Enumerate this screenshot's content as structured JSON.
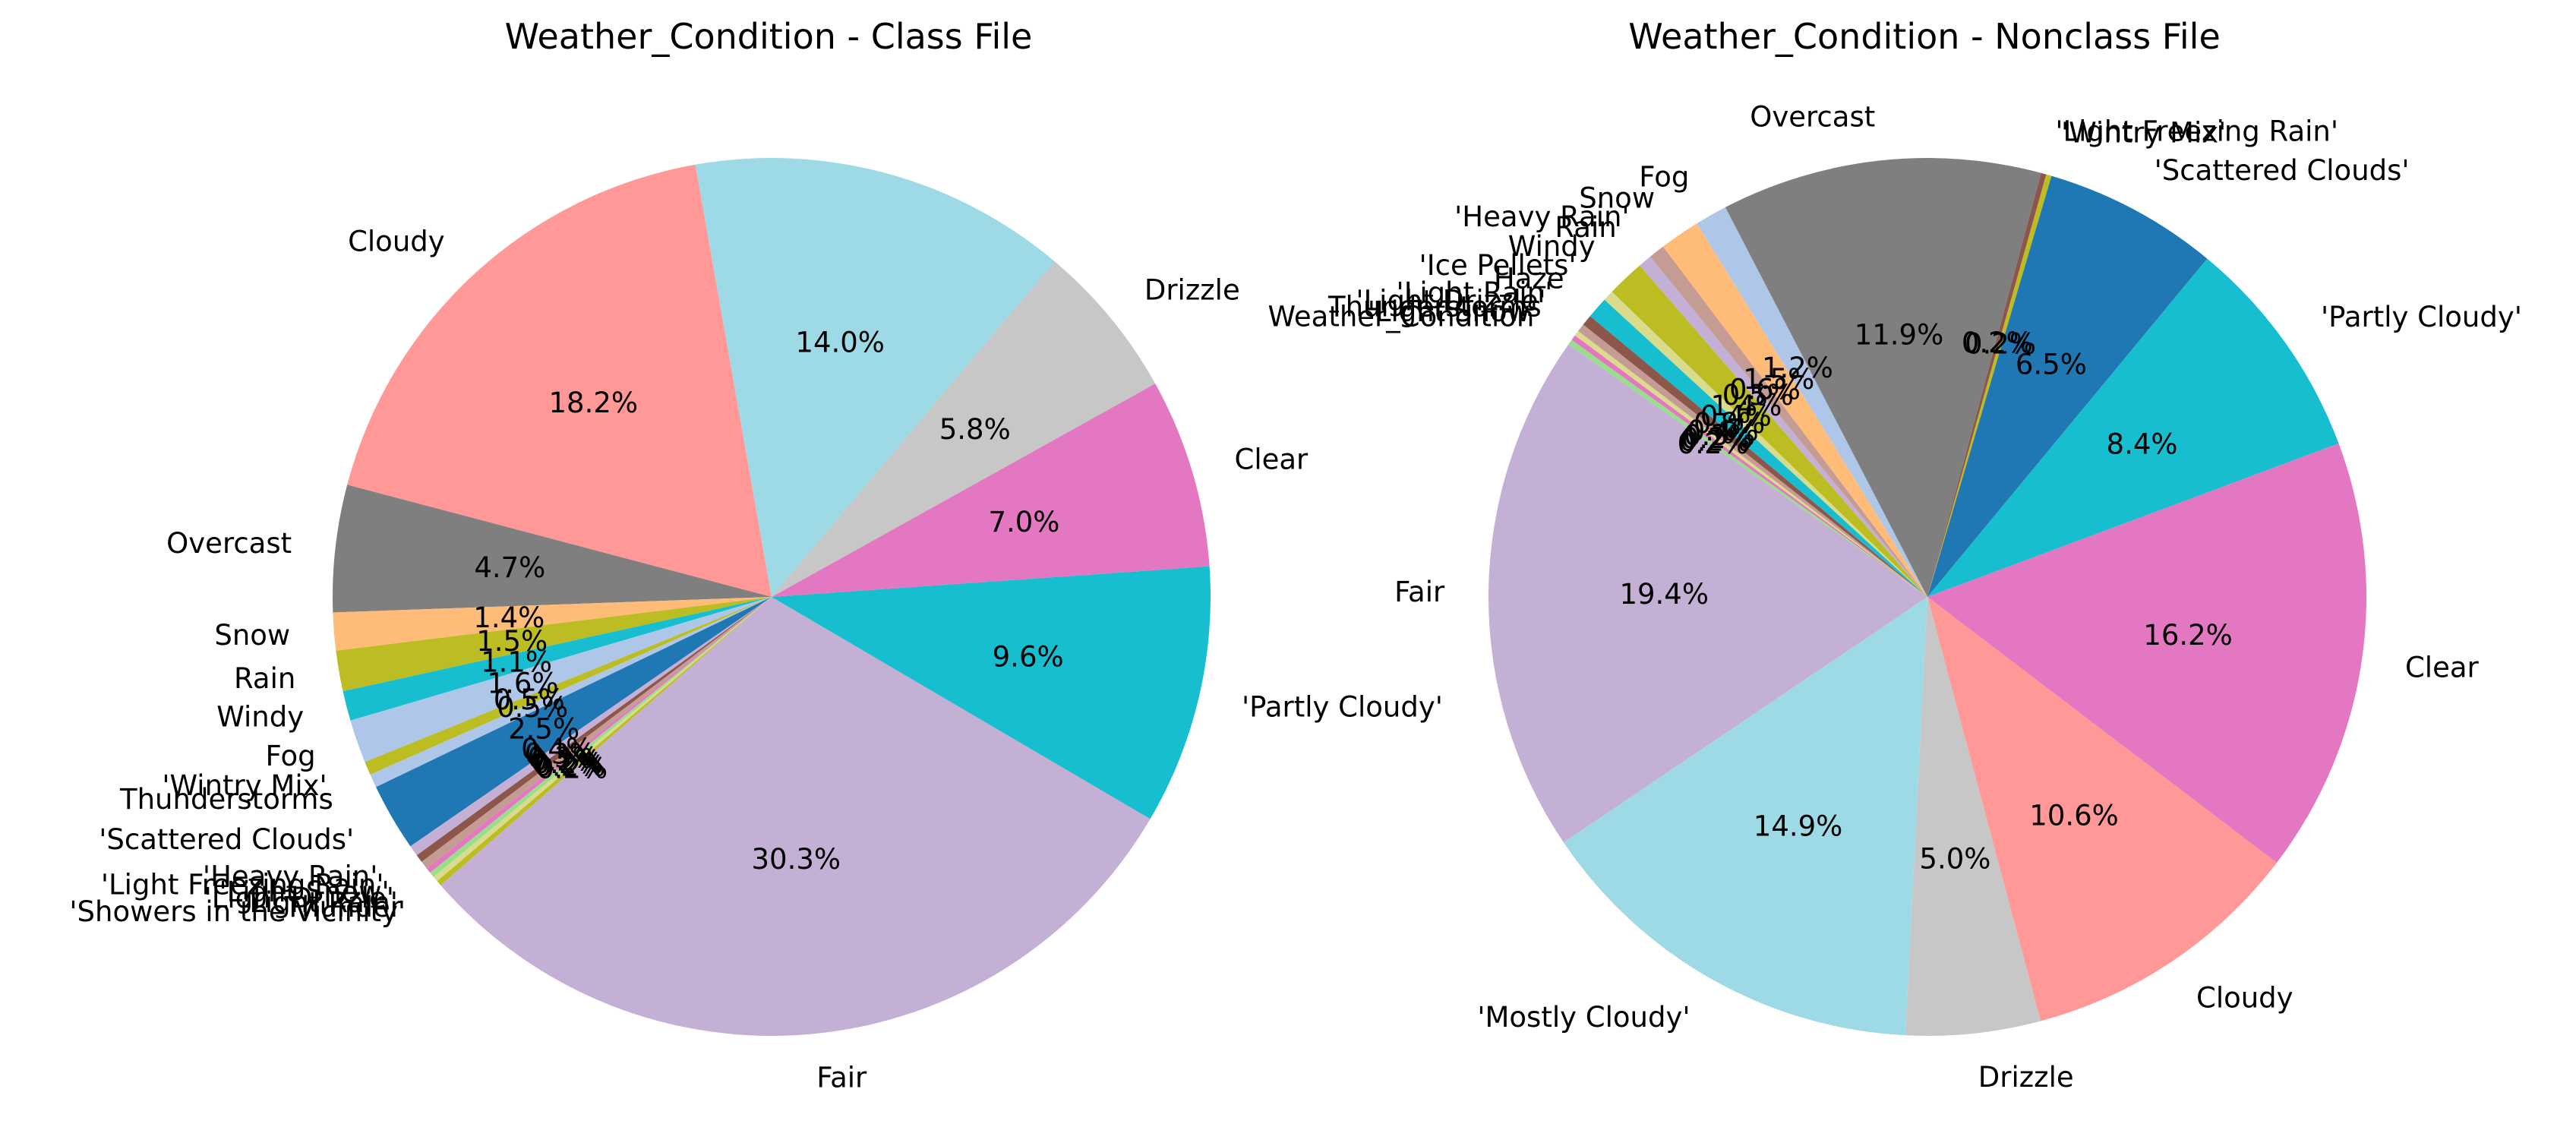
{
  "chart_data": [
    {
      "type": "pie",
      "title": "Weather_Condition - Class File",
      "start_angle_deg": 100.0,
      "direction": "counterclockwise",
      "slices": [
        {
          "label": "Cloudy",
          "value": 18.2,
          "pct_text": "18.2%",
          "color": "#ff9896"
        },
        {
          "label": "Overcast",
          "value": 4.7,
          "pct_text": "4.7%",
          "color": "#7f7f7f"
        },
        {
          "label": "Snow",
          "value": 1.4,
          "pct_text": "1.4%",
          "color": "#ffbb78"
        },
        {
          "label": "Rain",
          "value": 1.5,
          "pct_text": "1.5%",
          "color": "#bcbd22"
        },
        {
          "label": "Windy",
          "value": 1.1,
          "pct_text": "1.1%",
          "color": "#17becf"
        },
        {
          "label": "Fog",
          "value": 1.6,
          "pct_text": "1.6%",
          "color": "#aec7e8"
        },
        {
          "label": "'Wintry Mix'",
          "value": 0.5,
          "pct_text": "0.5%",
          "color": "#bcbd22"
        },
        {
          "label": "Thunderstorms",
          "value": 0.5,
          "pct_text": "0.5%",
          "color": "#aec7e8"
        },
        {
          "label": "'Scattered Clouds'",
          "value": 2.5,
          "pct_text": "2.5%",
          "color": "#1f77b4"
        },
        {
          "label": "'Heavy Rain'",
          "value": 0.4,
          "pct_text": "0.4%",
          "color": "#c5b0d5"
        },
        {
          "label": "'Light Freezing Rain'",
          "value": 0.3,
          "pct_text": "0.3%",
          "color": "#8c564b"
        },
        {
          "label": "'Light Snow'",
          "value": 0.3,
          "pct_text": "0.3%",
          "color": "#c49c94"
        },
        {
          "label": "'Light Drizzle'",
          "value": 0.2,
          "pct_text": "0.2%",
          "color": "#e377c2"
        },
        {
          "label": "'Light Rain'",
          "value": 0.2,
          "pct_text": "0.2%",
          "color": "#98df8a"
        },
        {
          "label": "Thunder",
          "value": 0.2,
          "pct_text": "0.2%",
          "color": "#dbdb8d"
        },
        {
          "label": "'Showers in the Vicinity'",
          "value": 0.2,
          "pct_text": "0.2%",
          "color": "#bcbd22"
        },
        {
          "label": "Fair",
          "value": 30.3,
          "pct_text": "30.3%",
          "color": "#c5b0d5"
        },
        {
          "label": "'Partly Cloudy'",
          "value": 9.6,
          "pct_text": "9.6%",
          "color": "#17becf"
        },
        {
          "label": "Clear",
          "value": 7.0,
          "pct_text": "7.0%",
          "color": "#e377c2"
        },
        {
          "label": "Drizzle",
          "value": 5.8,
          "pct_text": "5.8%",
          "color": "#c7c7c7"
        },
        {
          "label": "",
          "value": 14.0,
          "pct_text": "14.0%",
          "color": "#9edae5"
        }
      ]
    },
    {
      "type": "pie",
      "title": "Weather_Condition - Nonclass File",
      "start_angle_deg": 75.0,
      "direction": "clockwise",
      "slices": [
        {
          "label": "'Light Freezing Rain'",
          "value": 0.2,
          "pct_text": "0.2%",
          "color": "#8c564b"
        },
        {
          "label": "'Wintry Mix'",
          "value": 0.2,
          "pct_text": "0.2%",
          "color": "#bcbd22"
        },
        {
          "label": "'Scattered Clouds'",
          "value": 6.5,
          "pct_text": "6.5%",
          "color": "#1f77b4"
        },
        {
          "label": "'Partly Cloudy'",
          "value": 8.4,
          "pct_text": "8.4%",
          "color": "#17becf"
        },
        {
          "label": "Clear",
          "value": 16.2,
          "pct_text": "16.2%",
          "color": "#e377c2"
        },
        {
          "label": "Cloudy",
          "value": 10.6,
          "pct_text": "10.6%",
          "color": "#ff9896"
        },
        {
          "label": "Drizzle",
          "value": 5.0,
          "pct_text": "5.0%",
          "color": "#c7c7c7"
        },
        {
          "label": "'Mostly Cloudy'",
          "value": 14.9,
          "pct_text": "14.9%",
          "color": "#9edae5"
        },
        {
          "label": "Fair",
          "value": 19.4,
          "pct_text": "19.4%",
          "color": "#c5b0d5"
        },
        {
          "label": "Weather_Condition",
          "value": 0.2,
          "pct_text": "0.2%",
          "color": "#98df8a"
        },
        {
          "label": "'Light Snow'",
          "value": 0.2,
          "pct_text": "0.2%",
          "color": "#e377c2"
        },
        {
          "label": "Thunderstorms",
          "value": 0.2,
          "pct_text": "0.2%",
          "color": "#dbdb8d"
        },
        {
          "label": "'Light Drizzle'",
          "value": 0.3,
          "pct_text": "0.3%",
          "color": "#c49c94"
        },
        {
          "label": "'Light Rain'",
          "value": 0.4,
          "pct_text": "0.4%",
          "color": "#8c564b"
        },
        {
          "label": "Haze",
          "value": 0.8,
          "pct_text": "0.8%",
          "color": "#17becf"
        },
        {
          "label": "'Ice Pellets'",
          "value": 0.4,
          "pct_text": "0.4%",
          "color": "#dbdb8d"
        },
        {
          "label": "Windy",
          "value": 1.4,
          "pct_text": "1.4%",
          "color": "#bcbd22"
        },
        {
          "label": "Rain",
          "value": 0.5,
          "pct_text": "0.5%",
          "color": "#c5b0d5"
        },
        {
          "label": "'Heavy Rain'",
          "value": 0.6,
          "pct_text": "0.6%",
          "color": "#c49c94"
        },
        {
          "label": "Snow",
          "value": 1.5,
          "pct_text": "1.5%",
          "color": "#ffbb78"
        },
        {
          "label": "Fog",
          "value": 1.2,
          "pct_text": "1.2%",
          "color": "#aec7e8"
        },
        {
          "label": "Overcast",
          "value": 11.9,
          "pct_text": "11.9%",
          "color": "#7f7f7f"
        }
      ]
    }
  ]
}
